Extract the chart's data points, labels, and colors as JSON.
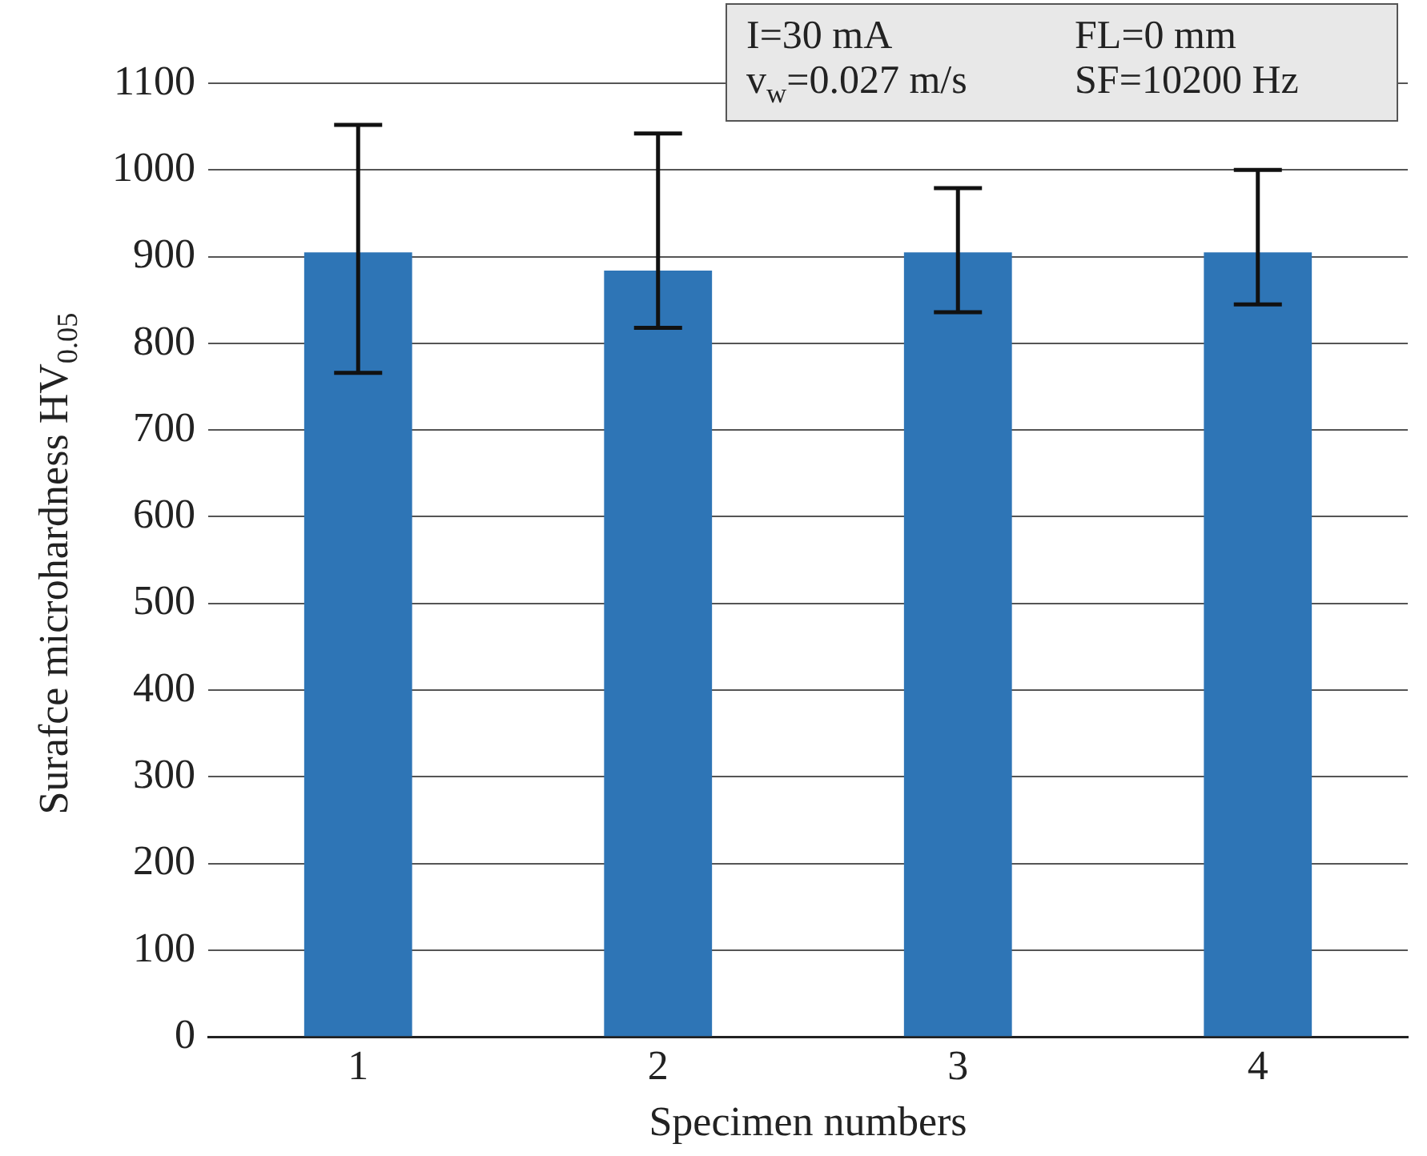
{
  "chart_data": {
    "type": "bar",
    "xlabel": "Specimen numbers",
    "ylabel": "Surafce microhardness HV$_{0.05}$",
    "categories": [
      "1",
      "2",
      "3",
      "4"
    ],
    "values": [
      905,
      884,
      905,
      905
    ],
    "errors": [
      [
        766,
        1052
      ],
      [
        818,
        1042
      ],
      [
        836,
        979
      ],
      [
        845,
        1000
      ]
    ],
    "color": "#2e75b6",
    "ylim": [
      0,
      1100
    ],
    "yticks": [
      0,
      100,
      200,
      300,
      400,
      500,
      600,
      700,
      800,
      900,
      1000,
      1100
    ],
    "grid": "y",
    "annotations": [
      "I=30 mA",
      "FL=0 mm",
      "v$_{w}$=0.027 m/s",
      "SF=10200 Hz"
    ]
  }
}
